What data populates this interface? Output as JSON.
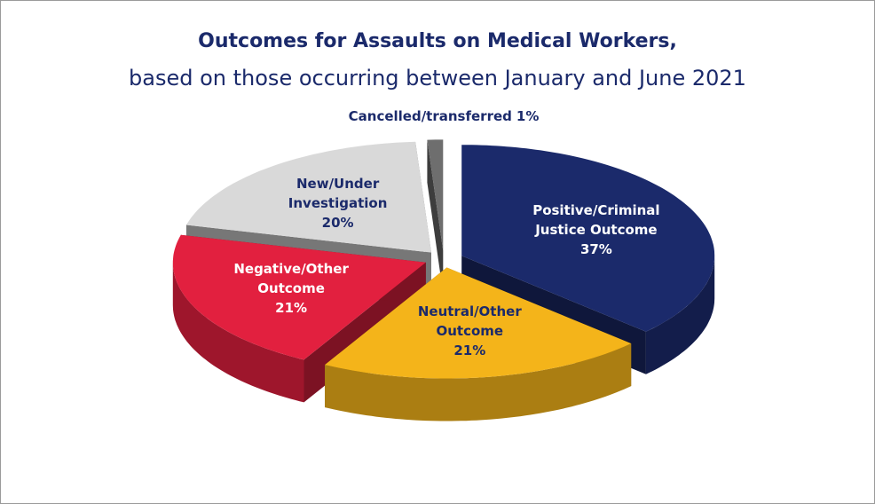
{
  "chart_data": {
    "type": "pie3d",
    "title": "Outcomes for Assaults on Medical Workers,",
    "subtitle": "based on those occurring between January and June 2021",
    "categories": [
      "Positive/Criminal Justice Outcome",
      "Neutral/Other Outcome",
      "Negative/Other Outcome",
      "New/Under Investigation",
      "Cancelled/transferred"
    ],
    "values": [
      37,
      21,
      21,
      20,
      1
    ],
    "value_labels": [
      "37%",
      "21%",
      "21%",
      "20%",
      "1%"
    ],
    "colors": [
      "#1b2a6b",
      "#f4b41a",
      "#e2203f",
      "#d9d9d9",
      "#6e6e6e"
    ]
  }
}
